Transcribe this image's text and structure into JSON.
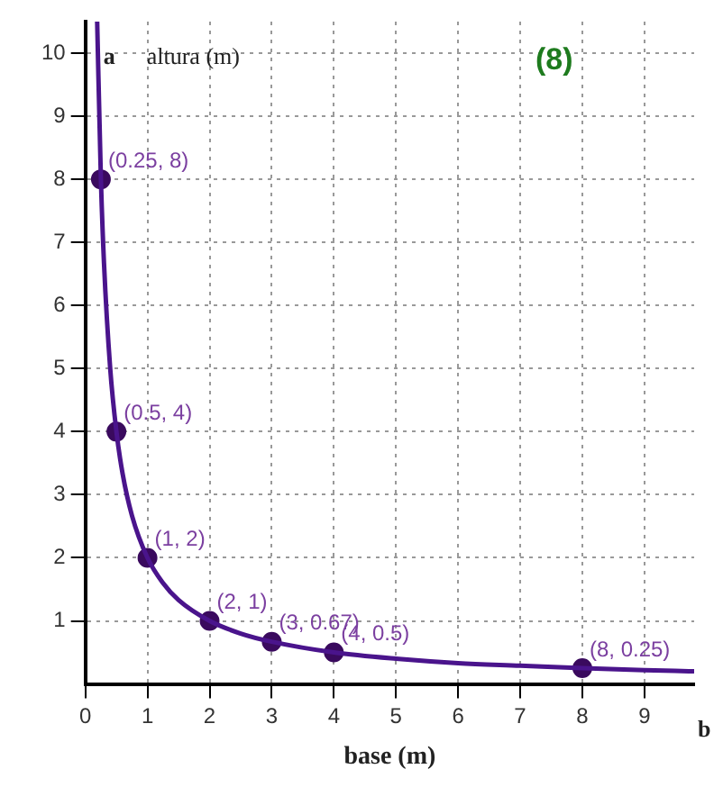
{
  "chart_data": {
    "type": "line",
    "title": "(8)",
    "xlabel": "base (m)",
    "ylabel": "altura (m)",
    "annotations": [
      "a",
      "b"
    ],
    "xlim": [
      0,
      9.8
    ],
    "ylim": [
      0,
      10.5
    ],
    "xticks": [
      0,
      1,
      2,
      3,
      4,
      5,
      6,
      7,
      8,
      9
    ],
    "yticks": [
      1,
      2,
      3,
      4,
      5,
      6,
      7,
      8,
      9,
      10
    ],
    "grid": true,
    "legend": false,
    "series": [
      {
        "color": "#4a148c",
        "marker": "none",
        "x": [
          0.19,
          0.25,
          0.3,
          0.4,
          0.5,
          0.6,
          0.75,
          1,
          1.25,
          1.5,
          2,
          2.5,
          3,
          4,
          5,
          6,
          7,
          8,
          9,
          9.8
        ],
        "values": [
          10.5,
          8,
          6.67,
          5,
          4,
          3.33,
          2.67,
          2,
          1.6,
          1.33,
          1,
          0.8,
          0.67,
          0.5,
          0.4,
          0.33,
          0.29,
          0.25,
          0.22,
          0.2
        ]
      },
      {
        "type": "scatter",
        "color": "#3a0a5e",
        "marker": "circle",
        "x": [
          0.25,
          0.5,
          1,
          2,
          3,
          4,
          8
        ],
        "values": [
          8,
          4,
          2,
          1,
          0.67,
          0.5,
          0.25
        ],
        "value_labels": [
          "(0.25, 8)",
          "(0.5, 4)",
          "(1, 2)",
          "(2, 1)",
          "(3, 0.67)",
          "(4, 0.5)",
          "(8, 0.25)"
        ]
      }
    ]
  }
}
